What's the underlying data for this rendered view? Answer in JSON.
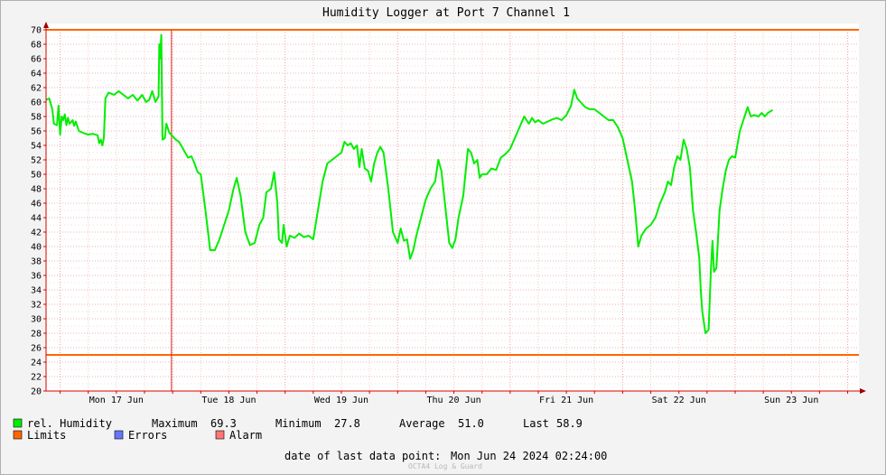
{
  "chart_data": {
    "type": "line",
    "title": "Humidity Logger at Port 7 Channel 1",
    "ylim": [
      20,
      70
    ],
    "y_ticks": [
      20,
      22,
      24,
      26,
      28,
      30,
      32,
      34,
      36,
      38,
      40,
      42,
      44,
      46,
      48,
      50,
      52,
      54,
      56,
      58,
      60,
      62,
      64,
      66,
      68,
      70
    ],
    "x_range": [
      "2024-06-16T21:00",
      "2024-06-24T02:24"
    ],
    "day_labels": [
      {
        "date": "2024-06-17",
        "label": "Mon 17 Jun"
      },
      {
        "date": "2024-06-18",
        "label": "Tue 18 Jun"
      },
      {
        "date": "2024-06-19",
        "label": "Wed 19 Jun"
      },
      {
        "date": "2024-06-20",
        "label": "Thu 20 Jun"
      },
      {
        "date": "2024-06-21",
        "label": "Fri 21 Jun"
      },
      {
        "date": "2024-06-22",
        "label": "Sat 22 Jun"
      },
      {
        "date": "2024-06-23",
        "label": "Sun 23 Jun"
      }
    ],
    "limits": {
      "upper": 70,
      "lower": 25,
      "color": "#ff6600"
    },
    "alarm_markers": [
      {
        "time": "2024-06-17T23:45",
        "color": "#dd2222"
      }
    ],
    "series": [
      {
        "name": "rel. Humidity",
        "color": "#00ee00",
        "points": [
          [
            "2024-06-16T21:00",
            60.3
          ],
          [
            "2024-06-16T21:40",
            60.5
          ],
          [
            "2024-06-16T22:20",
            59.0
          ],
          [
            "2024-06-16T22:40",
            57.0
          ],
          [
            "2024-06-16T23:20",
            56.8
          ],
          [
            "2024-06-16T23:40",
            59.5
          ],
          [
            "2024-06-17T00:00",
            55.5
          ],
          [
            "2024-06-17T00:20",
            58.0
          ],
          [
            "2024-06-17T00:40",
            57.5
          ],
          [
            "2024-06-17T01:00",
            58.3
          ],
          [
            "2024-06-17T01:20",
            56.8
          ],
          [
            "2024-06-17T01:40",
            57.8
          ],
          [
            "2024-06-17T02:00",
            57.0
          ],
          [
            "2024-06-17T02:40",
            57.5
          ],
          [
            "2024-06-17T03:00",
            56.7
          ],
          [
            "2024-06-17T03:20",
            57.3
          ],
          [
            "2024-06-17T04:00",
            56.0
          ],
          [
            "2024-06-17T05:00",
            55.7
          ],
          [
            "2024-06-17T06:00",
            55.5
          ],
          [
            "2024-06-17T07:00",
            55.6
          ],
          [
            "2024-06-17T08:00",
            55.4
          ],
          [
            "2024-06-17T08:20",
            54.3
          ],
          [
            "2024-06-17T08:40",
            54.8
          ],
          [
            "2024-06-17T09:00",
            54.0
          ],
          [
            "2024-06-17T09:20",
            55.0
          ],
          [
            "2024-06-17T09:40",
            60.5
          ],
          [
            "2024-06-17T10:20",
            61.3
          ],
          [
            "2024-06-17T11:30",
            61.0
          ],
          [
            "2024-06-17T12:30",
            61.5
          ],
          [
            "2024-06-17T13:30",
            61.0
          ],
          [
            "2024-06-17T14:30",
            60.5
          ],
          [
            "2024-06-17T15:30",
            61.0
          ],
          [
            "2024-06-17T16:30",
            60.2
          ],
          [
            "2024-06-17T17:30",
            61.0
          ],
          [
            "2024-06-17T18:20",
            60.0
          ],
          [
            "2024-06-17T19:00",
            60.3
          ],
          [
            "2024-06-17T19:40",
            61.5
          ],
          [
            "2024-06-17T20:20",
            60.0
          ],
          [
            "2024-06-17T21:00",
            60.8
          ],
          [
            "2024-06-17T21:10",
            68.0
          ],
          [
            "2024-06-17T21:20",
            66.0
          ],
          [
            "2024-06-17T21:35",
            69.3
          ],
          [
            "2024-06-17T21:50",
            54.8
          ],
          [
            "2024-06-17T22:20",
            55.0
          ],
          [
            "2024-06-17T22:40",
            57.0
          ],
          [
            "2024-06-17T23:20",
            55.7
          ],
          [
            "2024-06-18T00:00",
            55.3
          ],
          [
            "2024-06-18T00:40",
            54.8
          ],
          [
            "2024-06-18T01:20",
            54.5
          ],
          [
            "2024-06-18T02:00",
            53.8
          ],
          [
            "2024-06-18T02:40",
            53.0
          ],
          [
            "2024-06-18T03:20",
            52.3
          ],
          [
            "2024-06-18T04:00",
            52.5
          ],
          [
            "2024-06-18T04:40",
            51.5
          ],
          [
            "2024-06-18T05:20",
            50.3
          ],
          [
            "2024-06-18T06:00",
            50.0
          ],
          [
            "2024-06-18T07:00",
            45.0
          ],
          [
            "2024-06-18T08:00",
            39.5
          ],
          [
            "2024-06-18T09:00",
            39.5
          ],
          [
            "2024-06-18T10:00",
            41.0
          ],
          [
            "2024-06-18T11:00",
            43.0
          ],
          [
            "2024-06-18T12:00",
            45.0
          ],
          [
            "2024-06-18T13:00",
            48.0
          ],
          [
            "2024-06-18T13:40",
            49.5
          ],
          [
            "2024-06-18T14:30",
            47.0
          ],
          [
            "2024-06-18T15:30",
            42.0
          ],
          [
            "2024-06-18T16:30",
            40.2
          ],
          [
            "2024-06-18T17:30",
            40.5
          ],
          [
            "2024-06-18T18:30",
            43.0
          ],
          [
            "2024-06-18T19:20",
            44.0
          ],
          [
            "2024-06-18T20:00",
            47.5
          ],
          [
            "2024-06-18T21:00",
            48.0
          ],
          [
            "2024-06-18T21:40",
            50.3
          ],
          [
            "2024-06-18T22:20",
            46.0
          ],
          [
            "2024-06-18T22:40",
            41.0
          ],
          [
            "2024-06-18T23:20",
            40.5
          ],
          [
            "2024-06-18T23:40",
            43.0
          ],
          [
            "2024-06-19T00:20",
            40.0
          ],
          [
            "2024-06-19T01:00",
            41.5
          ],
          [
            "2024-06-19T02:00",
            41.2
          ],
          [
            "2024-06-19T03:00",
            41.8
          ],
          [
            "2024-06-19T04:00",
            41.3
          ],
          [
            "2024-06-19T05:00",
            41.5
          ],
          [
            "2024-06-19T06:00",
            41.0
          ],
          [
            "2024-06-19T07:00",
            45.0
          ],
          [
            "2024-06-19T08:00",
            49.0
          ],
          [
            "2024-06-19T09:00",
            51.5
          ],
          [
            "2024-06-19T10:00",
            52.0
          ],
          [
            "2024-06-19T11:00",
            52.5
          ],
          [
            "2024-06-19T12:00",
            53.0
          ],
          [
            "2024-06-19T12:40",
            54.5
          ],
          [
            "2024-06-19T13:20",
            54.0
          ],
          [
            "2024-06-19T14:00",
            54.3
          ],
          [
            "2024-06-19T14:40",
            53.5
          ],
          [
            "2024-06-19T15:20",
            54.0
          ],
          [
            "2024-06-19T15:50",
            51.0
          ],
          [
            "2024-06-19T16:20",
            53.5
          ],
          [
            "2024-06-19T17:00",
            50.8
          ],
          [
            "2024-06-19T17:40",
            50.5
          ],
          [
            "2024-06-19T18:20",
            49.0
          ],
          [
            "2024-06-19T19:00",
            51.5
          ],
          [
            "2024-06-19T19:40",
            53.0
          ],
          [
            "2024-06-19T20:20",
            53.8
          ],
          [
            "2024-06-19T21:00",
            53.0
          ],
          [
            "2024-06-19T22:00",
            48.0
          ],
          [
            "2024-06-19T23:00",
            42.0
          ],
          [
            "2024-06-20T00:00",
            40.5
          ],
          [
            "2024-06-20T00:40",
            42.5
          ],
          [
            "2024-06-20T01:20",
            40.8
          ],
          [
            "2024-06-20T02:00",
            41.0
          ],
          [
            "2024-06-20T02:40",
            38.3
          ],
          [
            "2024-06-20T03:20",
            39.5
          ],
          [
            "2024-06-20T04:00",
            41.5
          ],
          [
            "2024-06-20T05:00",
            44.0
          ],
          [
            "2024-06-20T06:00",
            46.5
          ],
          [
            "2024-06-20T07:00",
            48.0
          ],
          [
            "2024-06-20T08:00",
            49.0
          ],
          [
            "2024-06-20T08:40",
            52.0
          ],
          [
            "2024-06-20T09:20",
            50.5
          ],
          [
            "2024-06-20T10:00",
            46.5
          ],
          [
            "2024-06-20T11:00",
            40.5
          ],
          [
            "2024-06-20T11:40",
            39.8
          ],
          [
            "2024-06-20T12:20",
            41.0
          ],
          [
            "2024-06-20T13:00",
            44.0
          ],
          [
            "2024-06-20T14:00",
            47.0
          ],
          [
            "2024-06-20T15:00",
            53.5
          ],
          [
            "2024-06-20T15:40",
            53.0
          ],
          [
            "2024-06-20T16:20",
            51.5
          ],
          [
            "2024-06-20T17:00",
            52.0
          ],
          [
            "2024-06-20T17:30",
            49.5
          ],
          [
            "2024-06-20T18:00",
            50.0
          ],
          [
            "2024-06-20T19:00",
            50.0
          ],
          [
            "2024-06-20T20:00",
            50.8
          ],
          [
            "2024-06-20T21:00",
            50.6
          ],
          [
            "2024-06-20T22:00",
            52.3
          ],
          [
            "2024-06-20T23:00",
            52.8
          ],
          [
            "2024-06-21T00:00",
            53.5
          ],
          [
            "2024-06-21T01:00",
            55.0
          ],
          [
            "2024-06-21T02:00",
            56.5
          ],
          [
            "2024-06-21T03:00",
            58.0
          ],
          [
            "2024-06-21T04:00",
            57.0
          ],
          [
            "2024-06-21T04:40",
            57.8
          ],
          [
            "2024-06-21T05:20",
            57.2
          ],
          [
            "2024-06-21T06:00",
            57.5
          ],
          [
            "2024-06-21T07:00",
            57.0
          ],
          [
            "2024-06-21T08:00",
            57.3
          ],
          [
            "2024-06-21T09:00",
            57.6
          ],
          [
            "2024-06-21T10:00",
            57.8
          ],
          [
            "2024-06-21T11:00",
            57.5
          ],
          [
            "2024-06-21T12:00",
            58.2
          ],
          [
            "2024-06-21T13:00",
            59.5
          ],
          [
            "2024-06-21T13:40",
            61.7
          ],
          [
            "2024-06-21T14:20",
            60.5
          ],
          [
            "2024-06-21T15:00",
            60.0
          ],
          [
            "2024-06-21T16:00",
            59.3
          ],
          [
            "2024-06-21T17:00",
            59.0
          ],
          [
            "2024-06-21T18:00",
            59.0
          ],
          [
            "2024-06-21T19:00",
            58.5
          ],
          [
            "2024-06-21T20:00",
            58.0
          ],
          [
            "2024-06-21T21:00",
            57.5
          ],
          [
            "2024-06-21T22:00",
            57.5
          ],
          [
            "2024-06-21T23:00",
            56.5
          ],
          [
            "2024-06-22T00:00",
            55.0
          ],
          [
            "2024-06-22T01:00",
            52.0
          ],
          [
            "2024-06-22T02:00",
            49.0
          ],
          [
            "2024-06-22T02:40",
            45.0
          ],
          [
            "2024-06-22T03:20",
            40.0
          ],
          [
            "2024-06-22T04:00",
            41.5
          ],
          [
            "2024-06-22T05:00",
            42.5
          ],
          [
            "2024-06-22T06:00",
            43.0
          ],
          [
            "2024-06-22T07:00",
            44.0
          ],
          [
            "2024-06-22T08:00",
            46.0
          ],
          [
            "2024-06-22T09:00",
            47.5
          ],
          [
            "2024-06-22T09:40",
            49.0
          ],
          [
            "2024-06-22T10:20",
            48.5
          ],
          [
            "2024-06-22T11:00",
            51.0
          ],
          [
            "2024-06-22T11:40",
            52.5
          ],
          [
            "2024-06-22T12:20",
            52.0
          ],
          [
            "2024-06-22T13:00",
            54.8
          ],
          [
            "2024-06-22T13:40",
            53.5
          ],
          [
            "2024-06-22T14:20",
            51.0
          ],
          [
            "2024-06-22T15:00",
            45.0
          ],
          [
            "2024-06-22T15:40",
            42.0
          ],
          [
            "2024-06-22T16:20",
            38.5
          ],
          [
            "2024-06-22T16:40",
            34.0
          ],
          [
            "2024-06-22T17:00",
            31.0
          ],
          [
            "2024-06-22T17:40",
            28.0
          ],
          [
            "2024-06-22T18:20",
            28.5
          ],
          [
            "2024-06-22T18:50",
            37.0
          ],
          [
            "2024-06-22T19:10",
            40.8
          ],
          [
            "2024-06-22T19:30",
            36.5
          ],
          [
            "2024-06-22T20:00",
            37.0
          ],
          [
            "2024-06-22T20:40",
            45.0
          ],
          [
            "2024-06-22T21:20",
            48.0
          ],
          [
            "2024-06-22T22:00",
            50.5
          ],
          [
            "2024-06-22T22:40",
            52.0
          ],
          [
            "2024-06-22T23:20",
            52.5
          ],
          [
            "2024-06-23T00:00",
            52.3
          ],
          [
            "2024-06-23T01:00",
            56.0
          ],
          [
            "2024-06-23T02:00",
            58.0
          ],
          [
            "2024-06-23T02:40",
            59.3
          ],
          [
            "2024-06-23T03:20",
            58.0
          ],
          [
            "2024-06-23T04:00",
            58.2
          ],
          [
            "2024-06-23T05:00",
            58.0
          ],
          [
            "2024-06-23T05:40",
            58.5
          ],
          [
            "2024-06-23T06:20",
            58.0
          ],
          [
            "2024-06-23T07:00",
            58.5
          ],
          [
            "2024-06-23T08:00",
            58.9
          ]
        ]
      }
    ]
  },
  "legend": {
    "humidity_label": "rel. Humidity",
    "limits_label": "Limits",
    "errors_label": "Errors",
    "alarm_label": "Alarm",
    "humidity_color": "#00ee00",
    "limits_color": "#ff6600",
    "errors_color": "#6677ff",
    "alarm_color": "#ff7777"
  },
  "stats": {
    "maximum_label": "Maximum",
    "maximum_value": "69.3",
    "minimum_label": "Minimum",
    "minimum_value": "27.8",
    "average_label": "Average",
    "average_value": "51.0",
    "last_label": "Last",
    "last_value": "58.9"
  },
  "footer": {
    "date_label": "date of last data point:",
    "date_value": "Mon Jun 24 2024 02:24:00",
    "watermark": "OCTA4 Log & Guard"
  }
}
